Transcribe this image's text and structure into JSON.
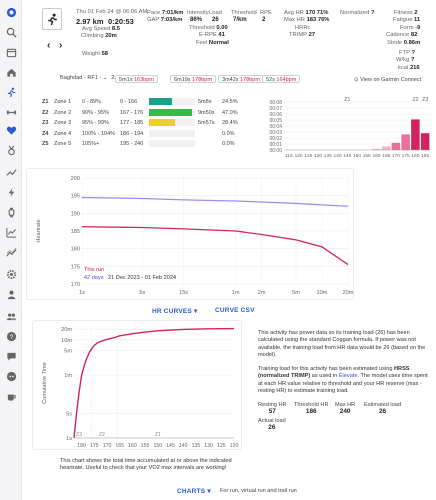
{
  "header": {
    "date": "Thu 01 Feb 24 @ 06:06 AM",
    "distance": "2.97 km",
    "moving_time": "0:20:53",
    "avg_speed_label": "Avg Speed",
    "avg_speed": "8.5",
    "climbing_label": "Climbing",
    "climbing": "20m",
    "pace_label": "Pace",
    "pace": "7:01/km",
    "gap_label": "GAP",
    "gap": "7:03/km",
    "intensity_label": "Intensity",
    "intensity": "86%",
    "load_label": "Load",
    "load": "26",
    "threshold_label": "Threshold",
    "threshold": "7/km",
    "rpe_label": "RPE",
    "rpe": "2",
    "threshold_row_label": "Threshold",
    "threshold_row": "0.00",
    "erpe_label": "E-RPE",
    "erpe": "41",
    "feel_label": "Feel",
    "feel": "Normal",
    "avg_hr_label": "Avg HR",
    "avg_hr": "170",
    "avg_hr_pct": "71%",
    "max_hr_label": "Max HR",
    "max_hr": "183",
    "max_hr_pct": "76%",
    "hrrc_label": "HRRc",
    "trimp_label": "TRIMP",
    "trimp": "27",
    "normalized_label": "Normalized",
    "normalized": "?",
    "fitness_label": "Fitness",
    "fitness": "2",
    "fatigue_label": "Fatigue",
    "fatigue": "11",
    "form_label": "Form",
    "form": "-9",
    "cadence_label": "Cadence",
    "cadence": "82",
    "stride_label": "Stride",
    "stride": "0.86m",
    "ftp_label": "FTP",
    "ftp": "?",
    "wkg_label": "W/kg",
    "wkg": "?",
    "kcal_label": "kcal",
    "kcal": "216",
    "weight_label": "Weight",
    "weight": "58"
  },
  "route": {
    "name": "Baghdad - RF1",
    "multiplier": "2x",
    "chips": [
      {
        "time": "5m1s",
        "bpm": "163bpm"
      },
      {
        "time": "6m19s",
        "bpm": "178bpm"
      },
      {
        "time": "3m42s",
        "bpm": "178bpm"
      },
      {
        "time": "52s",
        "bpm": "164bpm"
      }
    ],
    "garmin_link": "View on Garmin Connect"
  },
  "zones": [
    {
      "id": "Z1",
      "name": "Zone 1",
      "pct_range": "0 - 89%",
      "bpm": "0 - 166",
      "time": "5m8s",
      "share": "24.5%",
      "frac": 0.245,
      "color": "#1aa38a"
    },
    {
      "id": "Z2",
      "name": "Zone 2",
      "pct_range": "90% - 95%",
      "bpm": "167 - 176",
      "time": "9m50s",
      "share": "47.0%",
      "frac": 0.47,
      "color": "#3cb84a"
    },
    {
      "id": "Z3",
      "name": "Zone 3",
      "pct_range": "95% - 99%",
      "bpm": "177 - 185",
      "time": "5m57s",
      "share": "28.4%",
      "frac": 0.284,
      "color": "#f0cf2a"
    },
    {
      "id": "Z4",
      "name": "Zone 4",
      "pct_range": "100% - 104%",
      "bpm": "186 - 194",
      "time": "",
      "share": "0.0%",
      "frac": 0,
      "color": "#f08a2a"
    },
    {
      "id": "Z5",
      "name": "Zone 5",
      "pct_range": "105%+",
      "bpm": "195 - 240",
      "time": "",
      "share": "0.0%",
      "frac": 0,
      "color": "#e53935"
    }
  ],
  "chart_data": [
    {
      "type": "bar",
      "title": "",
      "categories": [
        "115",
        "120",
        "125",
        "130",
        "135",
        "140",
        "145",
        "150",
        "155",
        "160",
        "165",
        "170",
        "175",
        "180",
        "185"
      ],
      "values": [
        0,
        0,
        0,
        0,
        0,
        0,
        0,
        0,
        0,
        0.002,
        0.006,
        0.012,
        0.026,
        0.051,
        0.028
      ],
      "yticks": [
        "00:00",
        "00:01",
        "00:02",
        "00:03",
        "00:04",
        "00:05",
        "00:06",
        "00:07",
        "00:08"
      ],
      "ylim": [
        0,
        0.08
      ],
      "zone_labels": [
        "Z1",
        "Z2",
        "Z3"
      ],
      "colors": {
        "z1": "#f3b3c9",
        "z2": "#e8719a",
        "z3": "#d2235e"
      }
    },
    {
      "type": "line",
      "title": "",
      "ylabel": "Heartrate",
      "yticks": [
        "170",
        "175",
        "180",
        "185",
        "190",
        "195",
        "200"
      ],
      "xticks": [
        "1s",
        "5s",
        "15s",
        "1m",
        "2m",
        "5m",
        "10m",
        "20m"
      ],
      "ylim": [
        170,
        200
      ],
      "series": [
        {
          "name": "",
          "color": "#9a8ff0",
          "x": [
            1,
            5,
            15,
            60,
            120,
            300,
            600,
            1200
          ],
          "y": [
            194.5,
            194.2,
            193.8,
            193.5,
            193.2,
            192.8,
            192.4,
            192.0
          ]
        },
        {
          "name": "This run",
          "color": "#d2235e",
          "x": [
            1,
            5,
            15,
            60,
            120,
            300,
            600,
            1200
          ],
          "y": [
            186.2,
            186.0,
            185.6,
            185.0,
            184.0,
            182.5,
            180.5,
            175.5
          ]
        }
      ],
      "legend": {
        "this_run": "This run",
        "days": "42 days",
        "range": "21 Dec 2023 - 01 Feb 2024"
      }
    },
    {
      "type": "line",
      "title": "",
      "ylabel": "Cumulative Time",
      "yticks": [
        "1s",
        "5s",
        "1m",
        "5m",
        "10m",
        "20m"
      ],
      "xticks": [
        "180",
        "175",
        "170",
        "165",
        "160",
        "155",
        "150",
        "145",
        "140",
        "135",
        "130",
        "125",
        "120"
      ],
      "x": [
        183,
        182,
        181,
        180,
        179,
        178,
        177,
        176,
        175,
        174,
        172,
        170,
        167,
        165,
        160,
        155,
        150,
        145,
        140,
        135,
        130,
        125,
        120
      ],
      "y": [
        1,
        5,
        20,
        60,
        110,
        180,
        260,
        340,
        420,
        480,
        560,
        620,
        700,
        780,
        900,
        1000,
        1080,
        1140,
        1180,
        1210,
        1230,
        1245,
        1253
      ],
      "zone_labels": [
        "Z3",
        "Z2",
        "Z1"
      ],
      "color": "#d2235e"
    }
  ],
  "buttons": {
    "hr_curves": "HR CURVES",
    "curve_csv": "CURVE CSV",
    "charts": "CHARTS",
    "charts_caption": "For run, virtual run and trail run"
  },
  "panel": {
    "p1": "This activity has power data so its training load (26) has been calculated using the standard Coggan formula. If power was not available, the training load from HR data would be 26 (based on the model).",
    "p2_a": "Training load for this activity has been estimated using ",
    "p2_b": "HRSS (normalized TRIMP)",
    "p2_c": " as used in ",
    "p2_d": "Elevate",
    "p2_e": ". The model uses time spent at each HR value relative to threshold and your HR reserve (max - resting HR) to estimate training load.",
    "resting_label": "Resting HR",
    "resting": "57",
    "threshold_label": "Threshold HR",
    "threshold": "186",
    "max_label": "Max HR",
    "max": "240",
    "est_label": "Estimated load",
    "est": "26",
    "actual_label": "Actual load",
    "actual": "26"
  },
  "cumulative_caption": "This chart shows the total time accumulated at or above the indicated heartrate. Useful to check that your VO2 max intervals are working!"
}
